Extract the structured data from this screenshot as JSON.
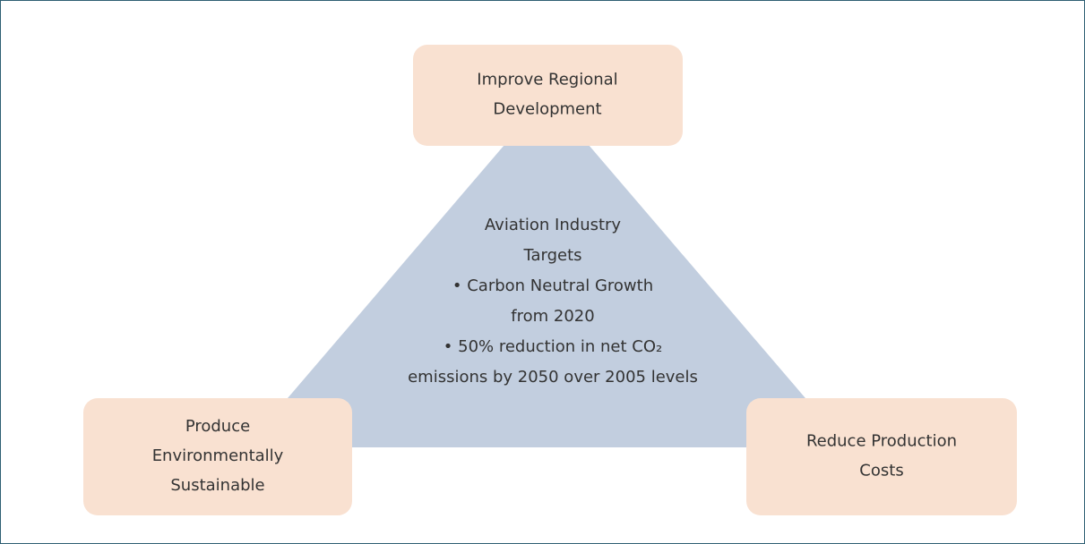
{
  "nodes": [
    {
      "label": [
        "Improve Regional",
        "Development"
      ]
    },
    {
      "label": [
        "Produce",
        "Environmentally",
        "Sustainable"
      ]
    },
    {
      "label": [
        "Reduce Production",
        "Costs"
      ]
    }
  ],
  "center": {
    "lines": [
      "Aviation Industry",
      "Targets",
      "• Carbon Neutral Growth",
      "from 2020",
      "• 50% reduction in net CO₂",
      "emissions by 2050 over 2005 levels"
    ]
  }
}
